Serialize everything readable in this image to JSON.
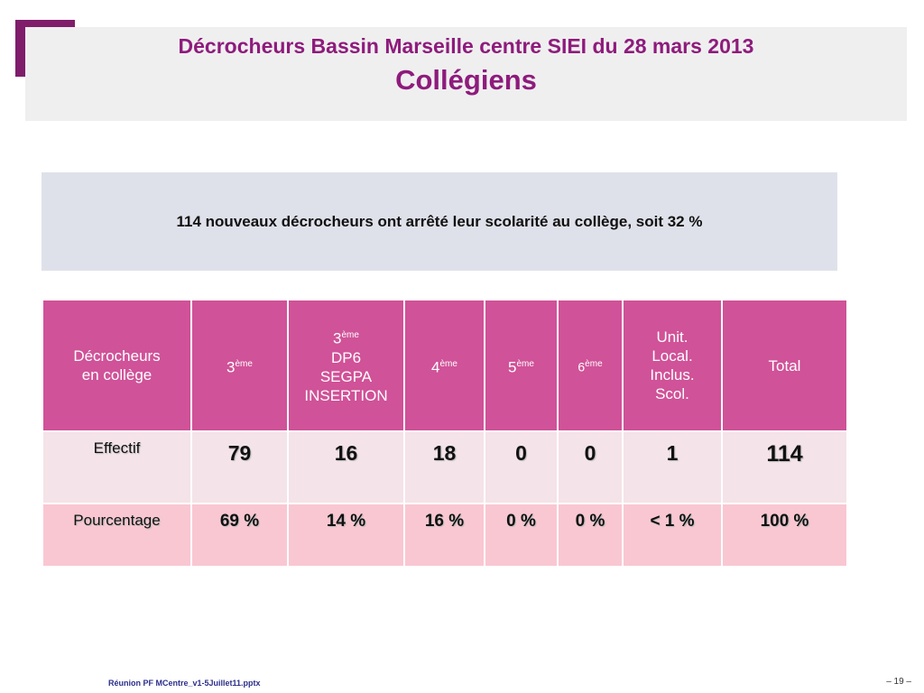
{
  "title": {
    "line1": "Décrocheurs Bassin Marseille centre SIEI du 28 mars 2013",
    "line2": "Collégiens"
  },
  "summary": "114 nouveaux décrocheurs ont arrêté leur scolarité au collège, soit  32 %",
  "table": {
    "headers": {
      "label": [
        "Décrocheurs",
        "en collège"
      ],
      "third": {
        "num": "3",
        "sup": "ème"
      },
      "third_dp6": {
        "num": "3",
        "sup": "ème",
        "lines": [
          "DP6",
          "SEGPA",
          "INSERTION"
        ]
      },
      "fourth": {
        "num": "4",
        "sup": "ème"
      },
      "fifth": {
        "num": "5",
        "sup": "ème"
      },
      "sixth": {
        "num": "6",
        "sup": "ème"
      },
      "unit": [
        "Unit.",
        "Local.",
        "Inclus.",
        "Scol."
      ],
      "total": "Total"
    },
    "rows": {
      "effectif": {
        "label": "Effectif",
        "values": [
          "79",
          "16",
          "18",
          "0",
          "0",
          "1",
          "114"
        ]
      },
      "pourcentage": {
        "label": "Pourcentage",
        "values": [
          "69 %",
          "14 %",
          "16 %",
          "0 %",
          "0 %",
          "< 1 %",
          "100 %"
        ]
      }
    }
  },
  "footer": {
    "file": "Réunion PF MCentre_v1-5Juillet11.pptx",
    "page": "– 19 –"
  },
  "colors": {
    "accent_purple": "#8e1b7c",
    "table_header": "#d05298",
    "row_effectif": "#f4e3e8",
    "row_pourcentage": "#f9c7d2",
    "summary_bg": "#dfe1ea"
  }
}
